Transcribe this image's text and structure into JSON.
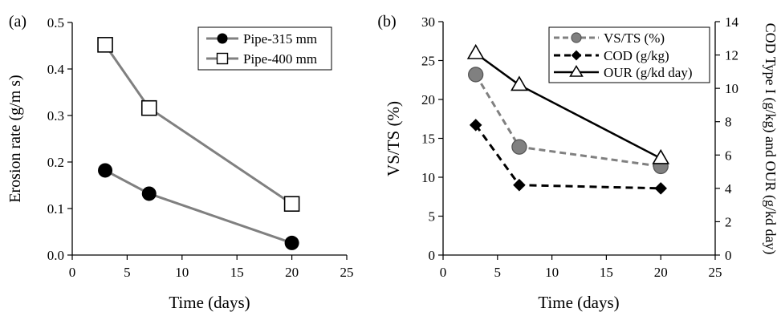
{
  "chart_data": [
    {
      "panel_label": "(a)",
      "type": "line",
      "xlabel": "Time (days)",
      "ylabel": "Erosion rate (g/m s)",
      "xlim": [
        0,
        25
      ],
      "ylim": [
        0,
        0.5
      ],
      "x_ticks": [
        "0",
        "5",
        "10",
        "15",
        "20",
        "25"
      ],
      "y_ticks": [
        "0.0",
        "0.1",
        "0.2",
        "0.3",
        "0.4",
        "0.5"
      ],
      "grid": false,
      "legend_position": "top-right",
      "series": [
        {
          "name": "Pipe-315 mm",
          "marker": "filled-circle",
          "color": "#808080",
          "x": [
            3,
            7,
            20
          ],
          "y": [
            0.182,
            0.132,
            0.026
          ]
        },
        {
          "name": "Pipe-400 mm",
          "marker": "open-square",
          "color": "#808080",
          "x": [
            3,
            7,
            20
          ],
          "y": [
            0.452,
            0.316,
            0.11
          ]
        }
      ]
    },
    {
      "panel_label": "(b)",
      "type": "line",
      "xlabel": "Time (days)",
      "ylabel": "VS/TS (%)",
      "y2label": "COD Type I (g/kg) and OUR (g/kd day)",
      "xlim": [
        0,
        25
      ],
      "ylim": [
        0,
        30
      ],
      "y2lim": [
        0,
        14
      ],
      "x_ticks": [
        "0",
        "5",
        "10",
        "15",
        "20",
        "25"
      ],
      "y_ticks": [
        "0",
        "5",
        "10",
        "15",
        "20",
        "25",
        "30"
      ],
      "y2_ticks": [
        "0",
        "2",
        "4",
        "6",
        "8",
        "10",
        "12",
        "14"
      ],
      "grid": false,
      "legend_position": "top-right",
      "series": [
        {
          "name": "VS/TS (%)",
          "axis": "left",
          "marker": "filled-circle",
          "line": "dashed",
          "color": "#808080",
          "x": [
            3,
            7,
            20
          ],
          "y": [
            23.2,
            13.9,
            11.4
          ]
        },
        {
          "name": "COD (g/kg)",
          "axis": "right",
          "marker": "filled-diamond",
          "line": "dashed",
          "color": "#000000",
          "x": [
            3,
            7,
            20
          ],
          "y": [
            7.8,
            4.2,
            4.0
          ]
        },
        {
          "name": "OUR (g/kd day)",
          "axis": "right",
          "marker": "open-triangle",
          "line": "solid",
          "color": "#000000",
          "x": [
            3,
            7,
            20
          ],
          "y": [
            12.1,
            10.2,
            5.8
          ]
        }
      ]
    }
  ]
}
